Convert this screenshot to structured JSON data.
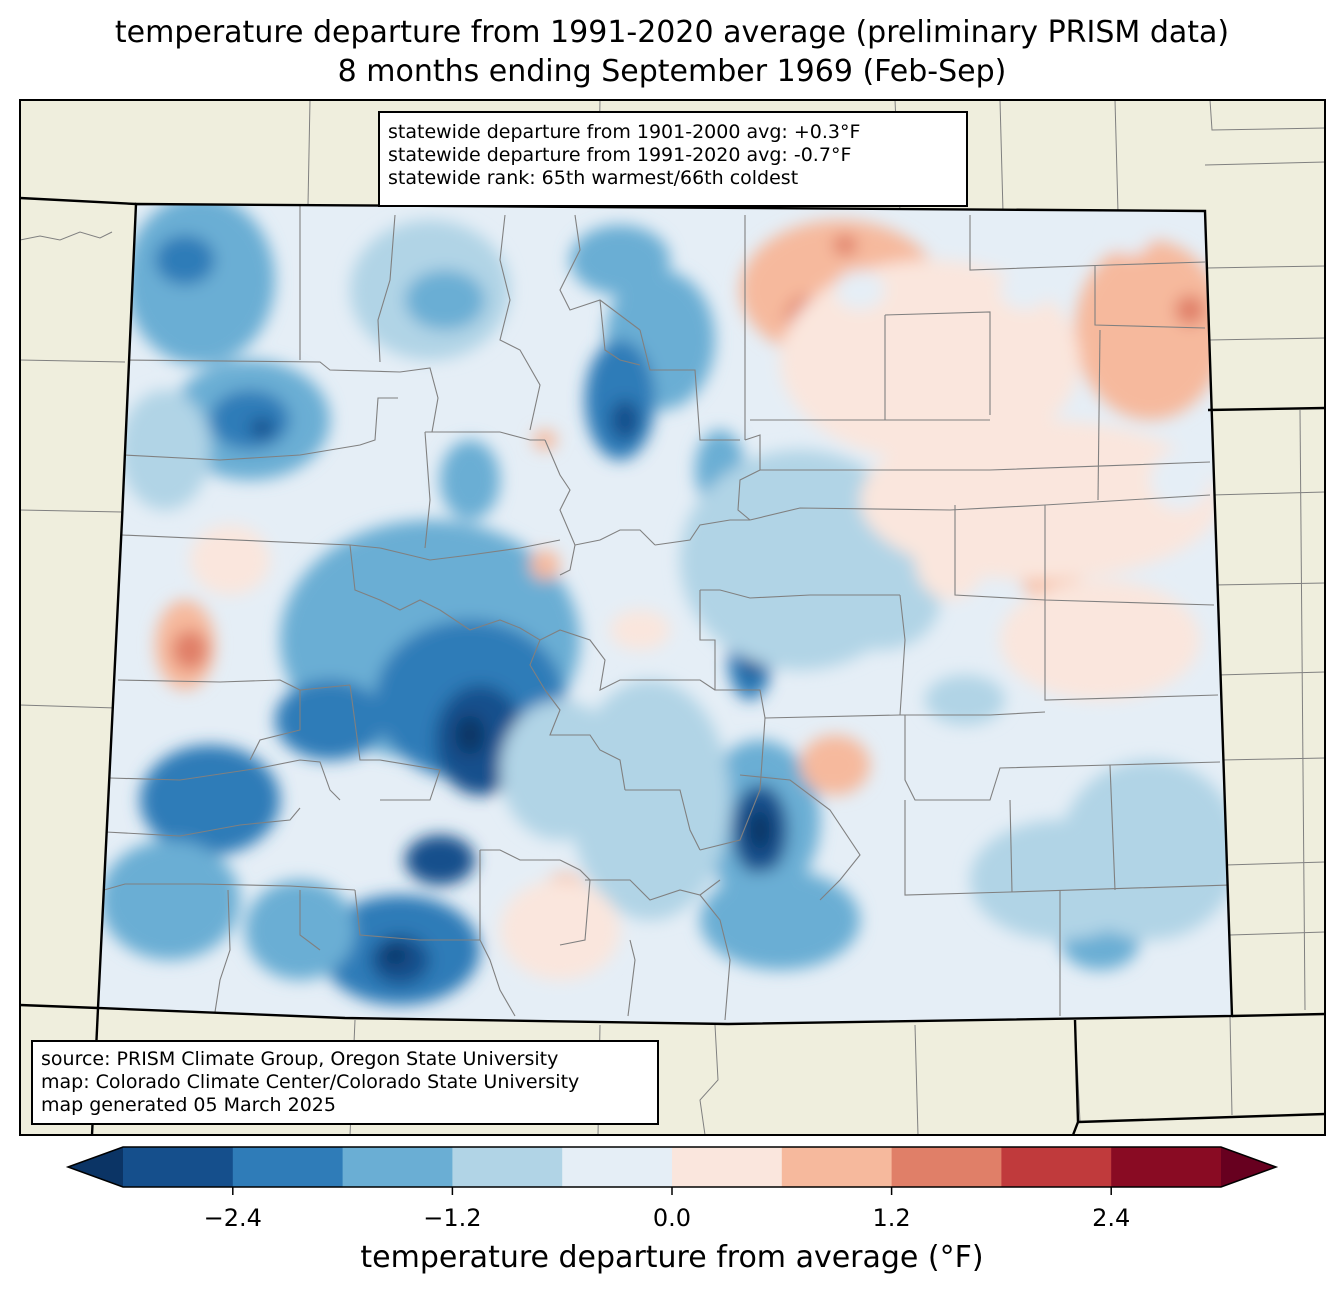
{
  "title": {
    "line1": "temperature departure from 1991-2020 average (preliminary PRISM data)",
    "line2": "8 months ending September 1969 (Feb-Sep)"
  },
  "stats": {
    "line1": "statewide departure from 1901-2000 avg: +0.3°F",
    "line2": "statewide departure from 1991-2020 avg: -0.7°F",
    "line3": "statewide rank: 65th warmest/66th coldest"
  },
  "source": {
    "line1": "source: PRISM Climate Group, Oregon State University",
    "line2": "map: Colorado Climate Center/Colorado State University",
    "line3": "map generated 05 March 2025"
  },
  "colorbar": {
    "label": "temperature departure from average (°F)",
    "range": [
      -3.0,
      3.0
    ],
    "step": 0.6,
    "ticks": [
      {
        "value": -2.4,
        "label": "−2.4"
      },
      {
        "value": -1.2,
        "label": "−1.2"
      },
      {
        "value": 0.0,
        "label": "0.0"
      },
      {
        "value": 1.2,
        "label": "1.2"
      },
      {
        "value": 2.4,
        "label": "2.4"
      }
    ],
    "colors": [
      "#0b3465",
      "#154f8c",
      "#2f7cb8",
      "#6aaed4",
      "#b1d4e6",
      "#e5eef6",
      "#fae6dd",
      "#f6b99d",
      "#e07f68",
      "#c03a3c",
      "#890b23",
      "#67001f"
    ]
  },
  "map_style": {
    "land_color": "#efeedd",
    "county_line_color": "#808080",
    "state_line_color": "#000000"
  }
}
